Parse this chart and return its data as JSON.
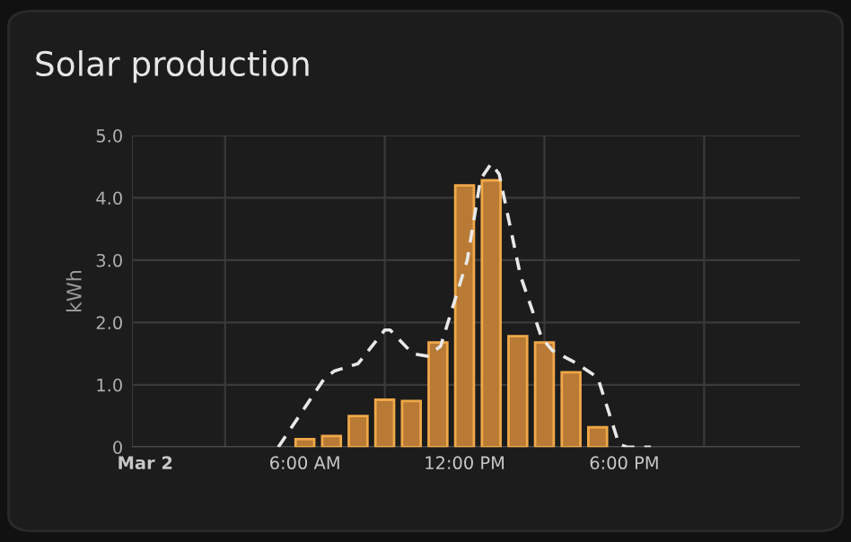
{
  "chart_data": {
    "type": "bar",
    "title": "Solar production",
    "ylabel": "kWh",
    "x": [
      6,
      7,
      8,
      9,
      10,
      11,
      12,
      13,
      14,
      15,
      16,
      17
    ],
    "series": [
      {
        "color": "#b87a34",
        "values": [
          0.13,
          0.18,
          0.5,
          0.76,
          0.74,
          1.68,
          4.2,
          4.28,
          1.78,
          1.68,
          1.2,
          0.32
        ]
      },
      {
        "type": "line",
        "color": "#e8e8e8",
        "line_style": "dashed",
        "x": [
          5.0,
          6.7,
          7.1,
          8.0,
          9.0,
          9.2,
          10.05,
          10.6,
          11.1,
          12.1,
          12.6,
          13.0,
          13.3,
          14.1,
          14.9,
          15.3,
          16.1,
          17.0,
          17.8,
          18.1,
          19.0
        ],
        "values": [
          0,
          1.08,
          1.22,
          1.34,
          1.88,
          1.88,
          1.5,
          1.46,
          1.62,
          3.0,
          4.3,
          4.55,
          4.38,
          2.75,
          1.75,
          1.55,
          1.37,
          1.12,
          0.05,
          0,
          0
        ]
      }
    ],
    "xlim": [
      -0.5,
      24.6
    ],
    "xticks": [
      {
        "value": 0,
        "label": "Mar 2"
      },
      {
        "value": 3,
        "label": null
      },
      {
        "value": 6,
        "label": "6:00 AM"
      },
      {
        "value": 9,
        "label": null
      },
      {
        "value": 12,
        "label": "12:00 PM"
      },
      {
        "value": 15,
        "label": null
      },
      {
        "value": 18,
        "label": "6:00 PM"
      },
      {
        "value": 21,
        "label": null
      }
    ],
    "ylim": [
      0,
      5
    ],
    "yticks": [
      {
        "value": 0,
        "label": "0"
      },
      {
        "value": 1,
        "label": "1.0"
      },
      {
        "value": 2,
        "label": "2.0"
      },
      {
        "value": 3,
        "label": "3.0"
      },
      {
        "value": 4,
        "label": "4.0"
      },
      {
        "value": 5,
        "label": "5.0"
      }
    ],
    "grid": true,
    "legend": false
  }
}
